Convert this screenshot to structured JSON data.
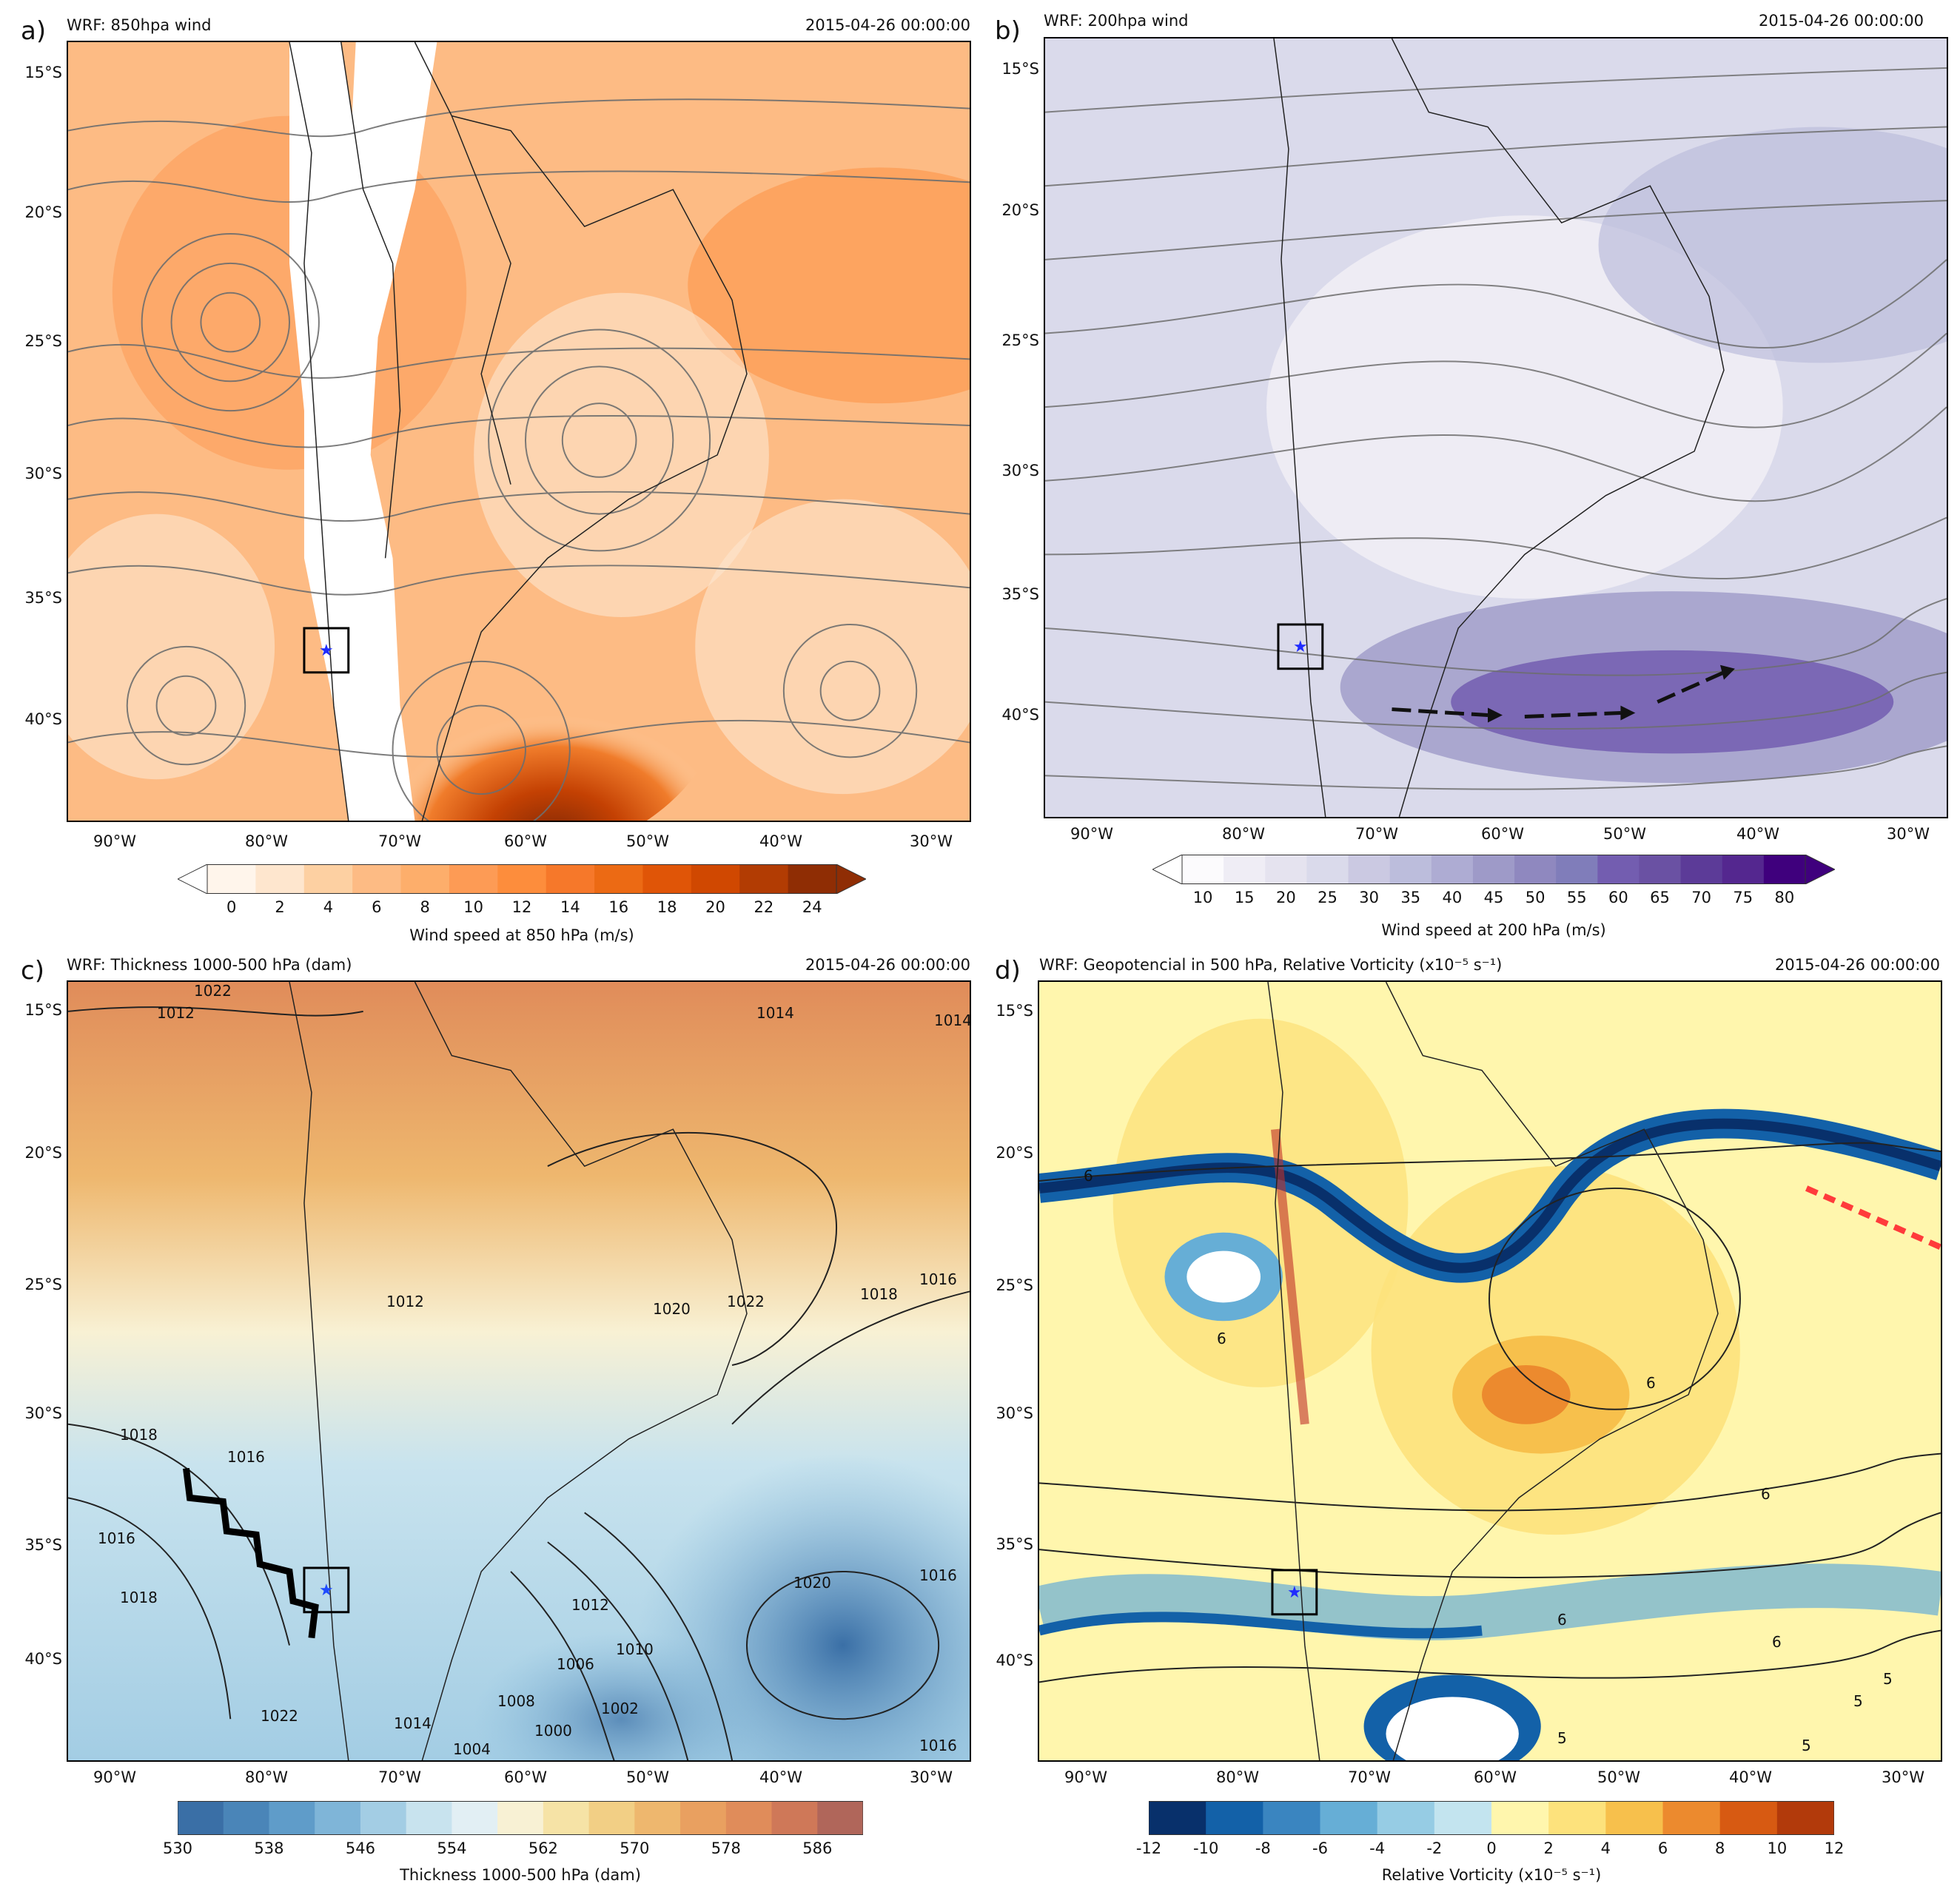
{
  "panels": [
    {
      "label": "a)",
      "title": "WRF: 850hpa wind",
      "date": "2015-04-26 00:00:00",
      "colorbar_label": "Wind speed at 850 hPa (m/s)",
      "ticks": [
        "0",
        "2",
        "4",
        "6",
        "8",
        "10",
        "12",
        "14",
        "16",
        "18",
        "20",
        "22",
        "24"
      ],
      "colors": [
        "#fff5eb",
        "#fee6ce",
        "#fdd0a2",
        "#fdbb84",
        "#fdae6b",
        "#fd9b55",
        "#fd8d3c",
        "#f6782a",
        "#ec6a14",
        "#e05507",
        "#d04801",
        "#b23c03",
        "#8f2d04"
      ]
    },
    {
      "label": "b)",
      "title": "WRF: 200hpa wind",
      "date": "2015-04-26 00:00:00",
      "colorbar_label": "Wind speed at 200 hPa (m/s)",
      "ticks": [
        "10",
        "15",
        "20",
        "25",
        "30",
        "35",
        "40",
        "45",
        "50",
        "55",
        "60",
        "65",
        "70",
        "75",
        "80"
      ],
      "colors": [
        "#fcfbfd",
        "#efedf5",
        "#e5e3ef",
        "#dadaeb",
        "#cbc9e2",
        "#bcbddc",
        "#aeacd3",
        "#9e9ac8",
        "#8f88bf",
        "#807dba",
        "#735db0",
        "#6a51a3",
        "#5c3b98",
        "#54278f",
        "#3f007d"
      ]
    },
    {
      "label": "c)",
      "title": "WRF: Thickness 1000-500 hPa (dam)",
      "date": "2015-04-26 00:00:00",
      "colorbar_label": "Thickness 1000-500 hPa (dam)",
      "ticks": [
        "530",
        "538",
        "546",
        "554",
        "562",
        "570",
        "578",
        "586"
      ],
      "colors": [
        "#3a6fa6",
        "#4a85b8",
        "#5f9cc9",
        "#7fb5d8",
        "#a3cde4",
        "#c8e3ee",
        "#e2eff4",
        "#f8f1d4",
        "#f6e3a6",
        "#f2cf85",
        "#eeb76e",
        "#e9a060",
        "#e08c5a",
        "#cf7858",
        "#b0665a"
      ]
    },
    {
      "label": "d)",
      "title": "WRF: Geopotencial in 500 hPa, Relative Vorticity (x10⁻⁵ s⁻¹)",
      "date": "2015-04-26 00:00:00",
      "colorbar_label": "Relative Vorticity (x10⁻⁵ s⁻¹)",
      "ticks": [
        "-12",
        "-10",
        "-8",
        "-6",
        "-4",
        "-2",
        "0",
        "2",
        "4",
        "6",
        "8",
        "10",
        "12"
      ],
      "colors": [
        "#08306b",
        "#1361a8",
        "#3a85c0",
        "#66aed6",
        "#96cce4",
        "#c3e4ef",
        "#fff6ad",
        "#fde27c",
        "#f7c04c",
        "#ec8a2e",
        "#d75a12",
        "#b23a0b"
      ]
    }
  ],
  "lat_labels": [
    "15°S",
    "20°S",
    "25°S",
    "30°S",
    "35°S",
    "40°S"
  ],
  "lon_labels": [
    "90°W",
    "80°W",
    "70°W",
    "60°W",
    "50°W",
    "40°W",
    "30°W"
  ],
  "contour_labels_c": [
    "1022",
    "1012",
    "1014",
    "1014",
    "1020",
    "1022",
    "1018",
    "1016",
    "1012",
    "1018",
    "1016",
    "1016",
    "1018",
    "1020",
    "1016",
    "1012",
    "1010",
    "1006",
    "1008",
    "1002",
    "1000",
    "1004",
    "1014",
    "1022",
    "1016"
  ],
  "contour_labels_d": [
    "6",
    "6",
    "6",
    "6",
    "6",
    "6",
    "5",
    "5",
    "5",
    "5"
  ]
}
